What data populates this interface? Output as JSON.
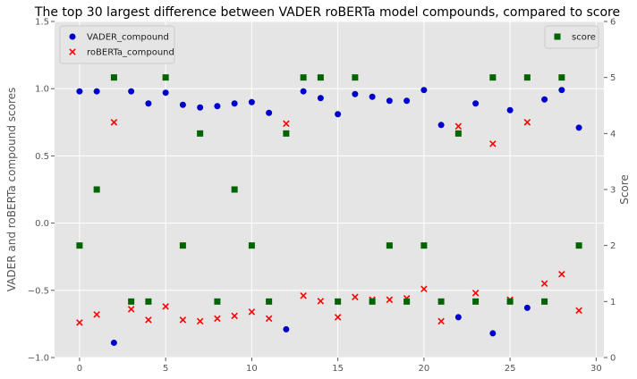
{
  "chart_data": {
    "type": "scatter",
    "title": "The top 30 largest difference between VADER roBERTa model compounds, compared to score",
    "xlabel": "",
    "ylabel": "VADER and roBERTa compound scores",
    "ylabel_right": "Score",
    "xlim": [
      -1.45,
      30.45
    ],
    "ylim": [
      -1.0,
      1.5
    ],
    "ylim_right": [
      0,
      6
    ],
    "x_ticks": [
      0,
      5,
      10,
      15,
      20,
      25,
      30
    ],
    "y_ticks": [
      -1.0,
      -0.5,
      0.0,
      0.5,
      1.0,
      1.5
    ],
    "y_ticks_right": [
      0,
      1,
      2,
      3,
      4,
      5,
      6
    ],
    "grid": true,
    "legend_left_placement": "top-left",
    "legend_right_placement": "top-right",
    "x": [
      0,
      1,
      2,
      3,
      4,
      5,
      6,
      7,
      8,
      9,
      10,
      11,
      12,
      13,
      14,
      15,
      16,
      17,
      18,
      19,
      20,
      21,
      22,
      23,
      24,
      25,
      26,
      27,
      28,
      29
    ],
    "series": [
      {
        "name": "VADER_compound",
        "axis": "left",
        "marker": "circle",
        "color": "#0000cc",
        "values": [
          0.98,
          0.98,
          -0.89,
          0.98,
          0.89,
          0.97,
          0.88,
          0.86,
          0.87,
          0.89,
          0.9,
          0.82,
          -0.79,
          0.98,
          0.93,
          0.81,
          0.96,
          0.94,
          0.91,
          0.91,
          0.99,
          0.73,
          -0.7,
          0.89,
          -0.82,
          0.84,
          -0.63,
          0.92,
          0.99,
          0.71
        ]
      },
      {
        "name": "roBERTa_compound",
        "axis": "left",
        "marker": "x",
        "color": "#ff0000",
        "values": [
          -0.74,
          -0.68,
          0.75,
          -0.64,
          -0.72,
          -0.62,
          -0.72,
          -0.73,
          -0.71,
          -0.69,
          -0.66,
          -0.71,
          0.74,
          -0.54,
          -0.58,
          -0.7,
          -0.55,
          -0.57,
          -0.57,
          -0.56,
          -0.49,
          -0.73,
          0.72,
          -0.52,
          0.59,
          -0.57,
          0.75,
          -0.45,
          -0.38,
          -0.65
        ]
      },
      {
        "name": "score",
        "axis": "right",
        "marker": "square",
        "color": "#006400",
        "values": [
          2,
          3,
          5,
          1,
          1,
          5,
          2,
          4,
          1,
          3,
          2,
          1,
          4,
          5,
          5,
          1,
          5,
          1,
          2,
          1,
          2,
          1,
          4,
          1,
          5,
          1,
          5,
          1,
          5,
          2
        ]
      }
    ]
  }
}
